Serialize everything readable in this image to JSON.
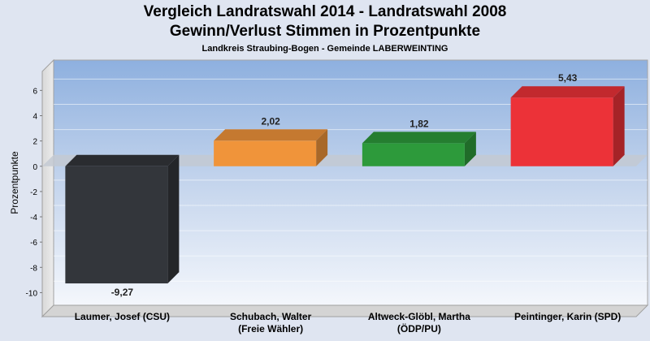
{
  "chart_data": {
    "type": "bar",
    "title": "Vergleich Landratswahl 2014 - Landratswahl 2008",
    "subtitle": "Gewinn/Verlust Stimmen in Prozentpunkte",
    "caption": "Landkreis Straubing-Bogen - Gemeinde LABERWEINTING",
    "ylabel": "Prozentpunkte",
    "xlabel": "",
    "categories": [
      [
        "Laumer, Josef (CSU)"
      ],
      [
        "Schubach, Walter",
        "(Freie Wähler)"
      ],
      [
        "Altweck-Glöbl, Martha",
        "(ÖDP/PU)"
      ],
      [
        "Peintinger, Karin (SPD)"
      ]
    ],
    "values": [
      -9.27,
      2.02,
      1.82,
      5.43
    ],
    "value_labels": [
      "-9,27",
      "2,02",
      "1,82",
      "5,43"
    ],
    "colors": [
      "#33363b",
      "#f0943a",
      "#2d9a3b",
      "#ec3238"
    ],
    "yticks": [
      6,
      4,
      2,
      0,
      -2,
      -4,
      -6,
      -8,
      -10
    ],
    "ylim": [
      -11,
      7.5
    ],
    "grid": true
  }
}
